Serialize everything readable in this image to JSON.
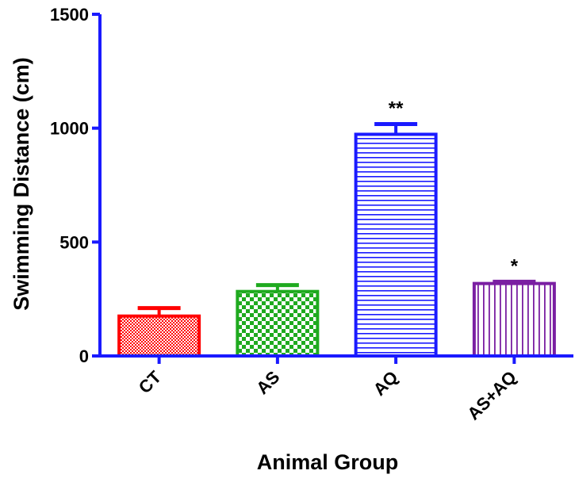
{
  "chart_data": {
    "type": "bar",
    "categories": [
      "CT",
      "AS",
      "AQ",
      "AS+AQ"
    ],
    "values": [
      175,
      283,
      973,
      318
    ],
    "errors": [
      35,
      28,
      45,
      8
    ],
    "annotations": [
      "",
      "",
      "**",
      "*"
    ],
    "xlabel": "Animal Group",
    "ylabel": "Swimming Distance (cm)",
    "ylim": [
      0,
      1500
    ],
    "yticks": [
      0,
      500,
      1000,
      1500
    ],
    "grid": false,
    "legend": "none",
    "colors": {
      "axis": "#1a1aff",
      "bars": [
        "#ff0000",
        "#1faa1f",
        "#1a1aff",
        "#7a1fa2"
      ]
    },
    "patterns": [
      "dense-dots",
      "checker",
      "horizontal-lines",
      "vertical-lines"
    ]
  }
}
